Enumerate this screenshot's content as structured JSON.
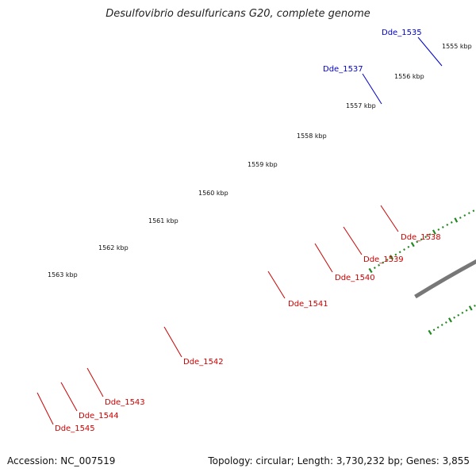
{
  "title": "Desulfovibrio desulfuricans G20, complete genome",
  "footer": {
    "accession": "Accession: NC_007519",
    "summary": "Topology: circular; Length: 3,730,232 bp; Genes: 3,855"
  },
  "colors": {
    "forward_cds": "#ee1111",
    "reverse_cds": "#7766cc",
    "pink": "#ee3399",
    "cyan": "#33ccee",
    "blue": "#1111ee",
    "green": "#228822",
    "backbone": "#777777",
    "ticks": "#228822",
    "red_label": "#cc0000",
    "blue_label": "#0000cc"
  },
  "ruler": [
    {
      "label": "1555 kbp"
    },
    {
      "label": "1556 kbp"
    },
    {
      "label": "1557 kbp"
    },
    {
      "label": "1558 kbp"
    },
    {
      "label": "1559 kbp"
    },
    {
      "label": "1560 kbp"
    },
    {
      "label": "1561 kbp"
    },
    {
      "label": "1562 kbp"
    },
    {
      "label": "1563 kbp"
    }
  ],
  "genes": [
    {
      "name": "Dde_1535",
      "label_color": "blue"
    },
    {
      "name": "Dde_1537",
      "label_color": "blue"
    },
    {
      "name": "Dde_1538",
      "label_color": "red"
    },
    {
      "name": "Dde_1539",
      "label_color": "red"
    },
    {
      "name": "Dde_1540",
      "label_color": "red"
    },
    {
      "name": "Dde_1541",
      "label_color": "red"
    },
    {
      "name": "Dde_1542",
      "label_color": "red"
    },
    {
      "name": "Dde_1543",
      "label_color": "red"
    },
    {
      "name": "Dde_1544",
      "label_color": "red"
    },
    {
      "name": "Dde_1545",
      "label_color": "red"
    }
  ]
}
